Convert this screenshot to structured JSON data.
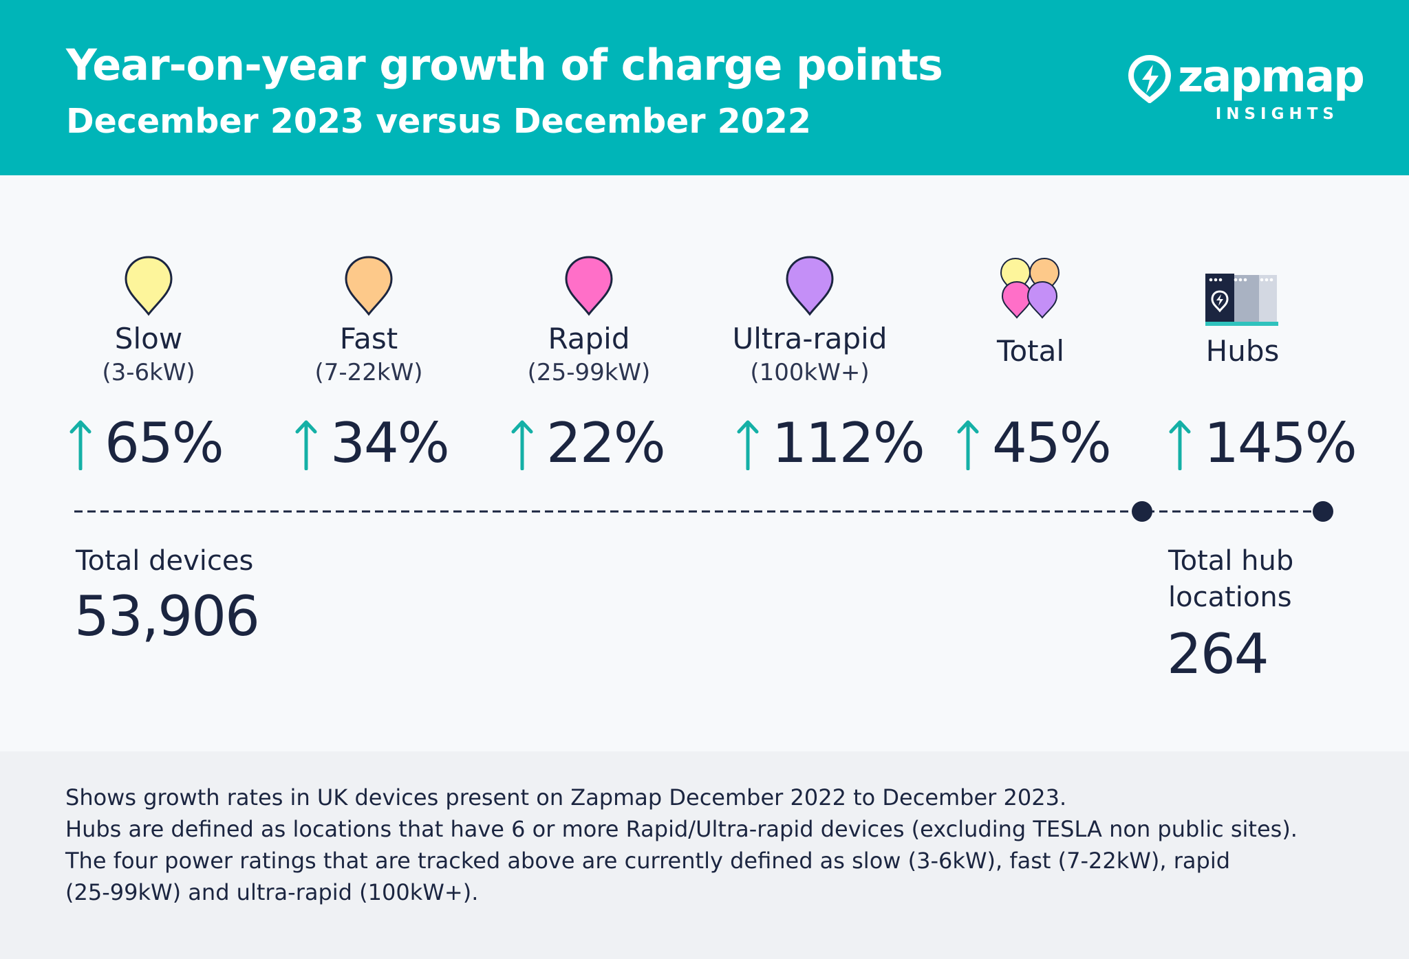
{
  "header": {
    "title": "Year-on-year growth of charge points",
    "subtitle": "December 2023 versus December 2022",
    "logo_word": "zapmap",
    "logo_sub": "INSIGHTS"
  },
  "categories": [
    {
      "label": "Slow",
      "sub": "(3-6kW)",
      "growth": "65%",
      "color": "#fdf59b",
      "icon": "pin-icon"
    },
    {
      "label": "Fast",
      "sub": "(7-22kW)",
      "growth": "34%",
      "color": "#fdc98a",
      "icon": "pin-icon"
    },
    {
      "label": "Rapid",
      "sub": "(25-99kW)",
      "growth": "22%",
      "color": "#ff6fc8",
      "icon": "pin-icon"
    },
    {
      "label": "Ultra-rapid",
      "sub": "(100kW+)",
      "growth": "112%",
      "color": "#c48ff7",
      "icon": "pin-icon"
    },
    {
      "label": "Total",
      "growth": "45%",
      "icon": "pin-cluster-icon"
    },
    {
      "label": "Hubs",
      "growth": "145%",
      "icon": "charging-hub-icon"
    }
  ],
  "totals": {
    "devices_label": "Total devices",
    "devices_value": "53,906",
    "hub_label_line1": "Total hub",
    "hub_label_line2": "locations",
    "hub_value": "264"
  },
  "notes": [
    "Shows growth rates in UK devices present on Zapmap December 2022 to December 2023.",
    "Hubs are defined as locations that have 6 or more Rapid/Ultra-rapid devices (excluding TESLA non public sites).",
    "The four power ratings that are tracked above are currently defined as slow (3-6kW), fast (7-22kW), rapid",
    "(25-99kW) and ultra-rapid (100kW+)."
  ],
  "colors": {
    "header_bg": "#00b5b8",
    "arrow": "#14b0a6",
    "text_dark": "#1b2540"
  }
}
